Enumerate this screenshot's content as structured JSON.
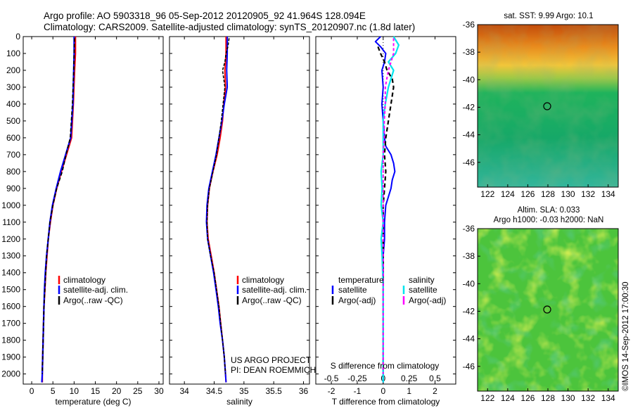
{
  "header": {
    "title_line1": "Argo profile: AO 5903318_96 05-Sep-2012 20120905_92 41.964S 128.094E",
    "title_line2": "Climatology: CARS2009. Satellite-adjusted climatology: synTS_20120907.nc (1.8d later)"
  },
  "colors": {
    "climatology": "#ff0000",
    "satellite": "#0000ff",
    "argo": "#000000",
    "salinity_satellite": "#00e5ee",
    "salinity_argo": "#ff00ff"
  },
  "chart_data": [
    {
      "type": "line",
      "name_id": "temperature",
      "xlabel": "temperature (deg C)",
      "ylabel": "",
      "xlim": [
        -2,
        31
      ],
      "ylim": [
        0,
        2060
      ],
      "y_reversed": true,
      "xticks": [
        0,
        5,
        10,
        15,
        20,
        25,
        30
      ],
      "yticks": [
        0,
        100,
        200,
        300,
        400,
        500,
        600,
        700,
        800,
        900,
        1000,
        1100,
        1200,
        1300,
        1400,
        1500,
        1600,
        1700,
        1800,
        1900,
        2000
      ],
      "legend": [
        "climatology",
        "satellite-adj. clim.",
        "Argo(..raw -QC)"
      ],
      "legend_placement": "center",
      "series": [
        {
          "name": "climatology",
          "depth": [
            0,
            100,
            200,
            400,
            600,
            700,
            800,
            900,
            1000,
            1100,
            1200,
            1300,
            1400,
            1500,
            1600,
            1700,
            1800,
            1900,
            2000,
            2050
          ],
          "values": [
            10.3,
            10.3,
            10.1,
            9.8,
            9.4,
            8.2,
            7.0,
            5.9,
            5.0,
            4.4,
            3.9,
            3.6,
            3.3,
            3.1,
            2.9,
            2.8,
            2.7,
            2.6,
            2.5,
            2.5
          ]
        },
        {
          "name": "satellite-adj. clim.",
          "depth": [
            0,
            100,
            200,
            400,
            600,
            700,
            800,
            900,
            1000,
            1100,
            1200,
            1300,
            1400,
            1500,
            1600,
            1700,
            1800,
            1900,
            2000,
            2050
          ],
          "values": [
            10.0,
            10.0,
            9.9,
            9.7,
            9.2,
            8.0,
            6.8,
            5.8,
            4.9,
            4.3,
            3.9,
            3.5,
            3.2,
            3.0,
            2.9,
            2.8,
            2.7,
            2.6,
            2.5,
            2.4
          ]
        },
        {
          "name": "Argo(..raw -QC)",
          "depth": [
            10,
            100,
            200,
            400,
            600,
            700,
            800,
            900,
            1000,
            1100,
            1200,
            1300,
            1400,
            1500,
            1600,
            1700,
            1800,
            1900,
            2000
          ],
          "values": [
            10.1,
            10.0,
            9.9,
            9.6,
            9.1,
            8.1,
            7.2,
            5.9,
            5.0,
            4.3,
            3.9,
            3.5,
            3.3,
            3.1,
            2.9,
            2.8,
            2.7,
            2.6,
            2.5
          ]
        }
      ]
    },
    {
      "type": "line",
      "name_id": "salinity",
      "xlabel": "salinity",
      "ylabel": "",
      "xlim": [
        33.75,
        36.1
      ],
      "ylim": [
        0,
        2060
      ],
      "y_reversed": true,
      "xticks": [
        34,
        34.5,
        35,
        35.5,
        36
      ],
      "legend": [
        "climatology",
        "satellite-adj. clim.",
        "Argo(..raw -QC)"
      ],
      "legend_placement": "center",
      "annotation": [
        "US ARGO PROJECT",
        "PI: DEAN ROEMMICH"
      ],
      "series": [
        {
          "name": "climatology",
          "depth": [
            0,
            100,
            200,
            300,
            400,
            500,
            600,
            700,
            800,
            900,
            1000,
            1100,
            1200,
            1300,
            1400,
            1500,
            1600,
            1700,
            1800,
            1900,
            2000,
            2050
          ],
          "values": [
            34.7,
            34.7,
            34.68,
            34.69,
            34.66,
            34.64,
            34.6,
            34.55,
            34.48,
            34.42,
            34.39,
            34.38,
            34.4,
            34.45,
            34.5,
            34.54,
            34.58,
            34.61,
            34.64,
            34.67,
            34.69,
            34.7
          ]
        },
        {
          "name": "satellite-adj. clim.",
          "depth": [
            0,
            100,
            200,
            300,
            400,
            500,
            600,
            700,
            800,
            900,
            1000,
            1100,
            1200,
            1300,
            1400,
            1500,
            1600,
            1700,
            1800,
            1900,
            2000,
            2050
          ],
          "values": [
            34.72,
            34.72,
            34.71,
            34.72,
            34.67,
            34.63,
            34.58,
            34.53,
            34.47,
            34.41,
            34.38,
            34.37,
            34.39,
            34.44,
            34.49,
            34.53,
            34.57,
            34.6,
            34.64,
            34.67,
            34.69,
            34.7
          ]
        },
        {
          "name": "Argo(..raw -QC)",
          "depth": [
            10,
            60,
            100,
            150,
            200,
            250,
            300,
            400,
            500,
            600,
            700,
            800,
            900,
            1000,
            1100,
            1200,
            1300,
            1400,
            1500,
            1600,
            1700,
            1800,
            1900,
            2000
          ],
          "values": [
            34.75,
            34.73,
            34.7,
            34.68,
            34.64,
            34.66,
            34.68,
            34.65,
            34.62,
            34.58,
            34.54,
            34.48,
            34.42,
            34.39,
            34.38,
            34.39,
            34.44,
            34.5,
            34.54,
            34.58,
            34.61,
            34.64,
            34.67,
            34.69
          ]
        }
      ]
    },
    {
      "type": "line",
      "name_id": "difference",
      "xlabel": "T difference from climatology",
      "xlabel2": "S difference from climatology",
      "xlim": [
        -2.6,
        2.8
      ],
      "ylim": [
        0,
        2060
      ],
      "y_reversed": true,
      "xticks": [
        -2,
        -1,
        0,
        1,
        2
      ],
      "xticks2": [
        -0.5,
        -0.25,
        0,
        0.25,
        0.5
      ],
      "xticks2_labels": [
        "-0.5",
        "-0.25",
        "0",
        "0.25",
        "0.5"
      ],
      "legend": {
        "temperature_heading": "temperature",
        "salinity_heading": "salinity",
        "items": [
          "satellite",
          "Argo(-adj)",
          "satellite",
          "Argo(-adj)"
        ]
      },
      "series": [
        {
          "name": "temperature satellite",
          "depth": [
            0,
            30,
            60,
            100,
            150,
            200,
            300,
            400,
            500,
            600,
            650,
            700,
            750,
            800,
            850,
            900,
            950,
            1000,
            1100,
            1200,
            1300,
            1500,
            1700,
            2000,
            2050
          ],
          "values": [
            -0.1,
            -0.3,
            -0.1,
            0.1,
            0.05,
            -0.05,
            0.0,
            -0.05,
            0.0,
            0.05,
            0.1,
            0.3,
            0.4,
            0.45,
            0.35,
            0.3,
            0.2,
            0.1,
            0.05,
            0.05,
            0.0,
            0.0,
            0.0,
            0.0,
            0.0
          ]
        },
        {
          "name": "temperature Argo(-adj)",
          "depth": [
            60,
            100,
            150,
            200,
            250,
            300,
            400,
            500,
            600,
            700,
            800,
            900,
            1000,
            1100,
            1200,
            1300,
            1500,
            1700,
            2000
          ],
          "values": [
            -0.2,
            -0.1,
            0.05,
            0.15,
            0.35,
            0.4,
            0.3,
            0.2,
            0.1,
            0.05,
            0.1,
            0.05,
            0.0,
            0.0,
            0.0,
            0.0,
            0.0,
            0.0,
            0.0
          ]
        },
        {
          "name": "salinity satellite",
          "depth": [
            0,
            50,
            100,
            150,
            200,
            300,
            400,
            500,
            600,
            700,
            800,
            900,
            1000,
            1100,
            1200,
            1300,
            1500,
            1700,
            2000,
            2050
          ],
          "values": [
            0.1,
            0.15,
            0.12,
            0.05,
            0.1,
            0.05,
            0.02,
            0.0,
            0.0,
            0.0,
            -0.02,
            -0.01,
            -0.02,
            0.0,
            -0.02,
            -0.01,
            0.0,
            0.0,
            0.0,
            0.0
          ]
        },
        {
          "name": "salinity Argo(-adj)",
          "depth": [
            10,
            100,
            200,
            300,
            400,
            500,
            600,
            700,
            800,
            900,
            1000,
            1100,
            1200,
            1300,
            1500,
            1700,
            2000
          ],
          "values": [
            0.1,
            0.1,
            0.05,
            0.02,
            0.02,
            0.01,
            0.01,
            0.0,
            0.0,
            0.0,
            0.0,
            0.0,
            0.0,
            0.0,
            0.0,
            0.0,
            0.0
          ]
        }
      ]
    },
    {
      "type": "heatmap",
      "name_id": "sst-map",
      "title": "sat. SST: 9.99 Argo: 10.1",
      "xticks": [
        122,
        124,
        126,
        128,
        130,
        132,
        134
      ],
      "yticks": [
        -36,
        -38,
        -40,
        -42,
        -44,
        -46
      ],
      "xlim": [
        121,
        135
      ],
      "ylim": [
        -47.8,
        -36
      ],
      "marker": {
        "lon": 128.094,
        "lat": -41.964
      }
    },
    {
      "type": "heatmap",
      "name_id": "sla-map",
      "title_line1": "Altim. SLA: 0.033",
      "title_line2": "Argo h1000: -0.03 h2000: NaN",
      "xticks": [
        122,
        124,
        126,
        128,
        130,
        132,
        134
      ],
      "yticks": [
        -36,
        -38,
        -40,
        -42,
        -44,
        -46
      ],
      "xlim": [
        121,
        135
      ],
      "ylim": [
        -47.8,
        -36
      ],
      "marker": {
        "lon": 128.094,
        "lat": -41.964
      },
      "side_text": "©IMOS 14-Sep-2012 17:00:30"
    }
  ]
}
